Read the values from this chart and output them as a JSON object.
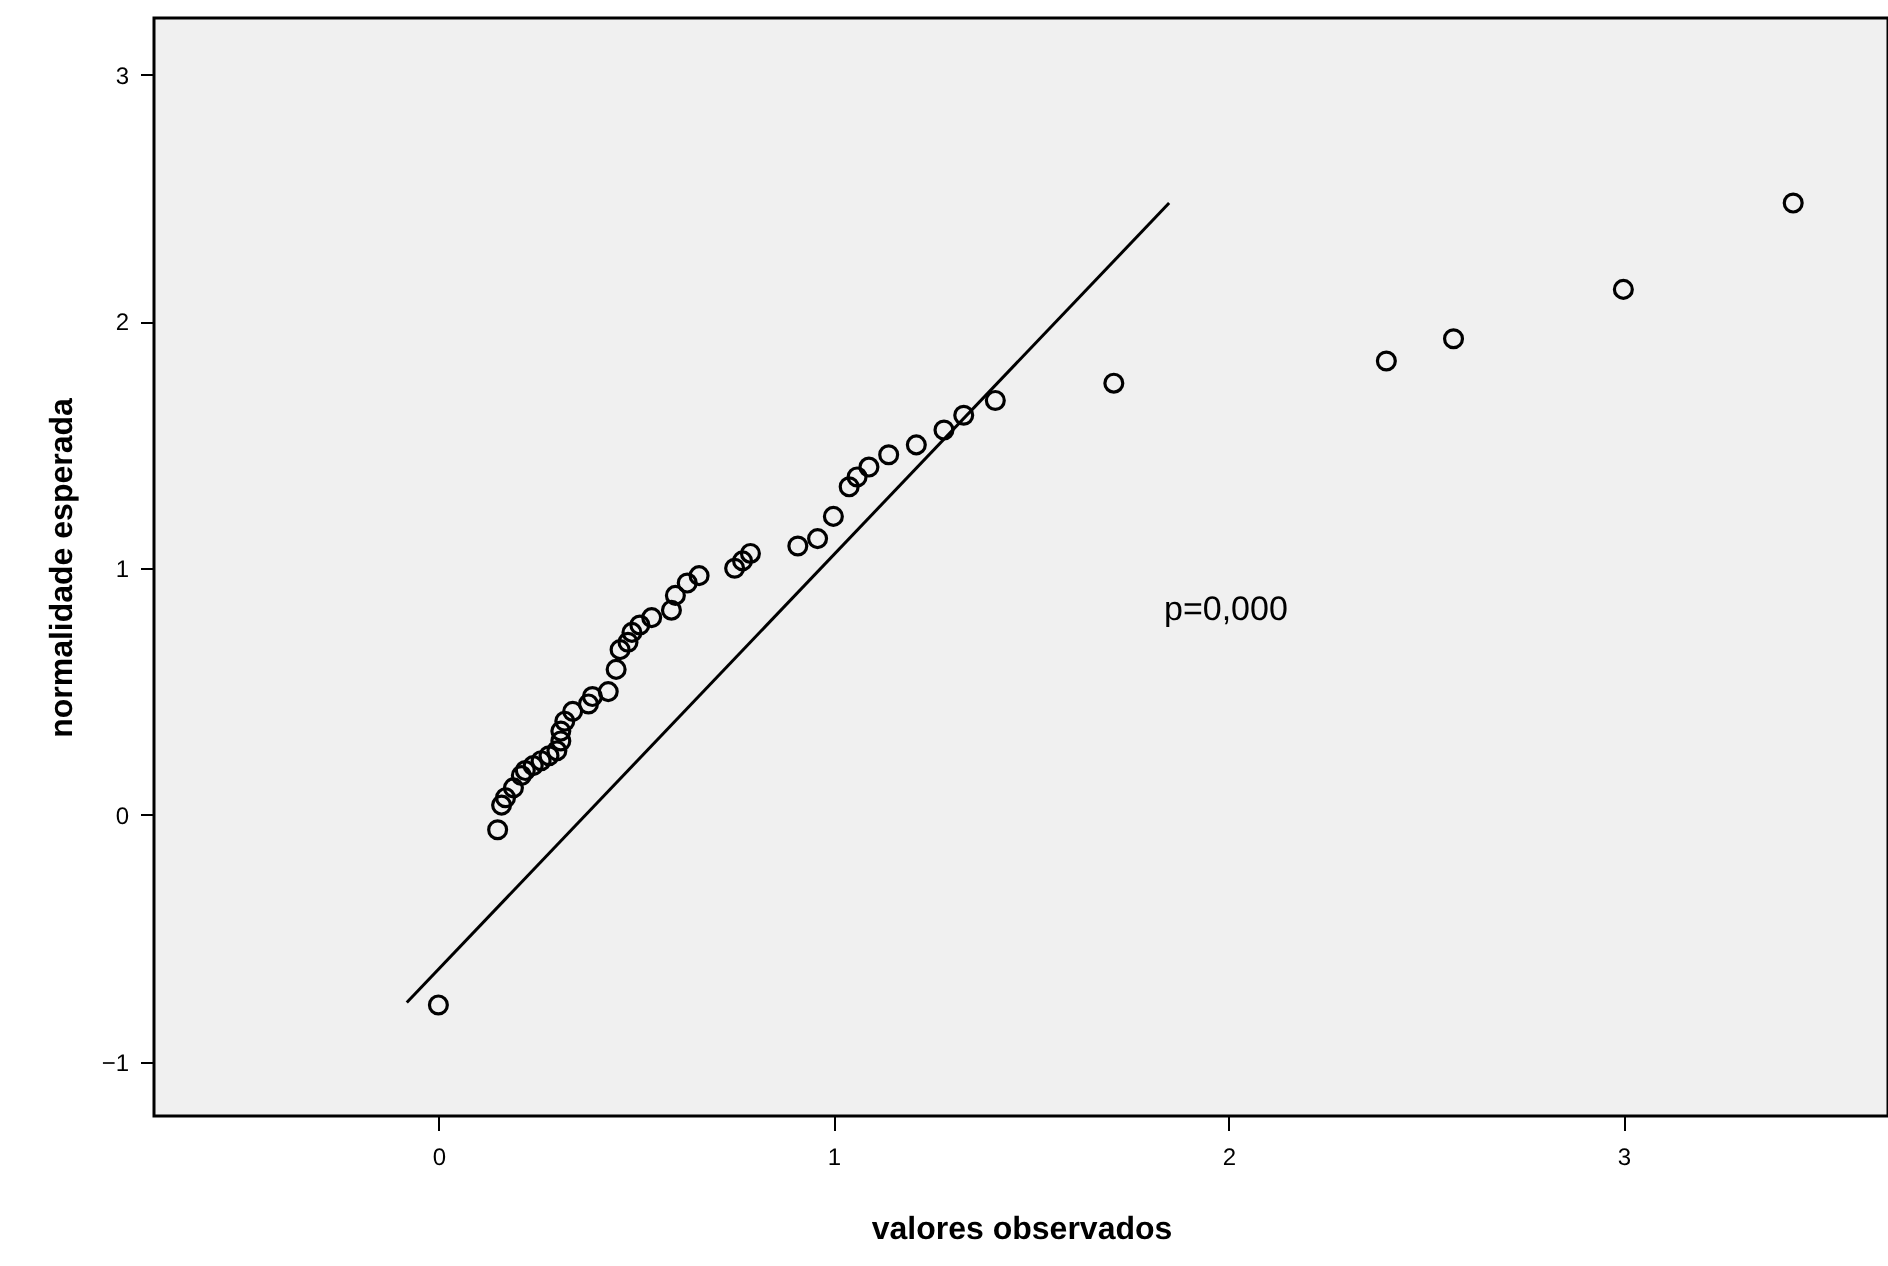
{
  "chart_data": {
    "type": "scatter",
    "xlabel": "valores observados",
    "ylabel": "normalidade esperada",
    "xlim": [
      -0.72,
      3.67
    ],
    "ylim": [
      -1.22,
      3.23
    ],
    "xticks": [
      0,
      1,
      2,
      3
    ],
    "yticks": [
      -1,
      0,
      1,
      2,
      3
    ],
    "grid": false,
    "annotations": [
      "p=0,000"
    ],
    "series": [
      {
        "type": "line",
        "color": "#000000",
        "marker": "none",
        "line_style": "solid",
        "x": [
          -0.08,
          1.85
        ],
        "values": [
          -0.76,
          2.48
        ]
      },
      {
        "color": "#000000",
        "marker": "circle",
        "x": [
          0,
          0.15,
          0.16,
          0.17,
          0.19,
          0.21,
          0.22,
          0.24,
          0.26,
          0.28,
          0.3,
          0.31,
          0.31,
          0.32,
          0.34,
          0.38,
          0.39,
          0.43,
          0.45,
          0.46,
          0.48,
          0.49,
          0.51,
          0.54,
          0.59,
          0.6,
          0.63,
          0.66,
          0.75,
          0.77,
          0.79,
          0.91,
          0.96,
          1.0,
          1.04,
          1.06,
          1.09,
          1.14,
          1.21,
          1.28,
          1.33,
          1.41,
          1.71,
          2.4,
          2.57,
          3.0,
          3.43
        ],
        "values": [
          -0.77,
          -0.06,
          0.04,
          0.07,
          0.11,
          0.16,
          0.18,
          0.2,
          0.22,
          0.24,
          0.26,
          0.3,
          0.34,
          0.38,
          0.42,
          0.45,
          0.48,
          0.5,
          0.59,
          0.67,
          0.7,
          0.74,
          0.77,
          0.8,
          0.83,
          0.89,
          0.94,
          0.97,
          1.0,
          1.03,
          1.06,
          1.09,
          1.12,
          1.21,
          1.33,
          1.37,
          1.41,
          1.46,
          1.5,
          1.56,
          1.62,
          1.68,
          1.75,
          1.84,
          1.93,
          2.13,
          2.48
        ]
      }
    ]
  }
}
